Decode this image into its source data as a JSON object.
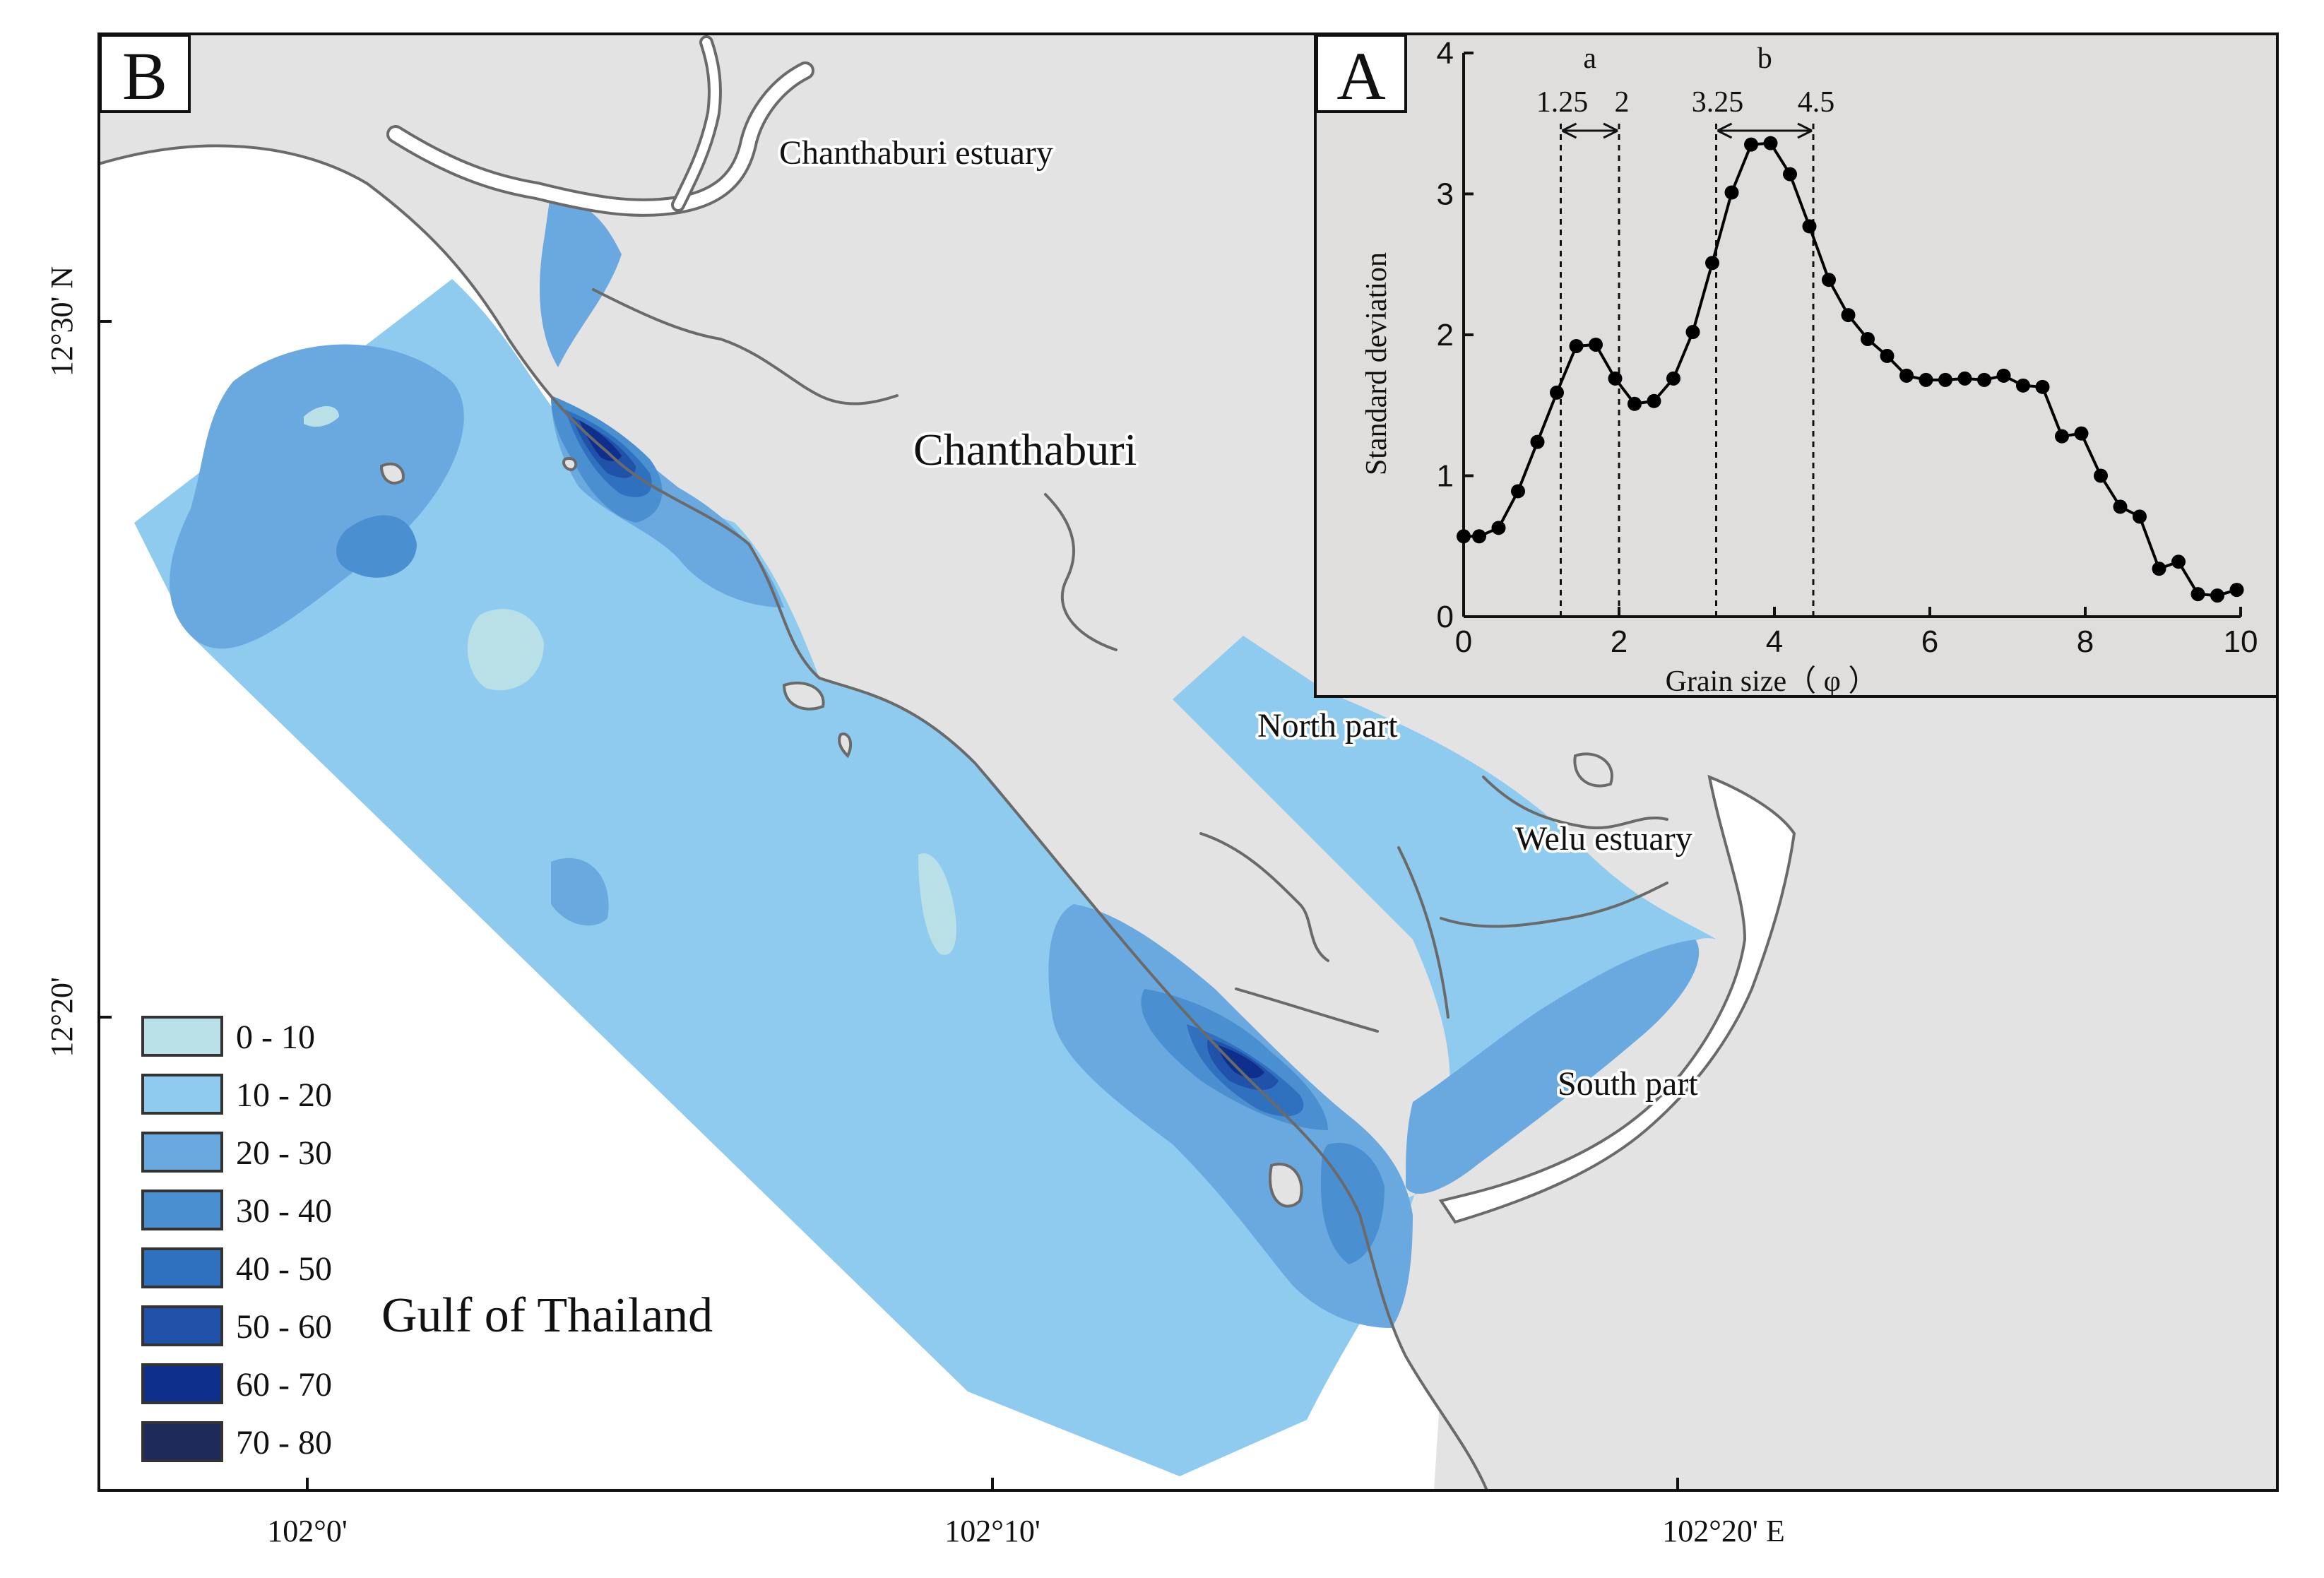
{
  "map": {
    "panel_letter": "B",
    "labels": {
      "chanthaburi_estuary": "Chanthaburi estuary",
      "chanthaburi": "Chanthaburi",
      "north_part": "North part",
      "welu_estuary": "Welu estuary",
      "south_part": "South part",
      "gulf": "Gulf of Thailand"
    },
    "lon_ticks": [
      "102°0'",
      "102°10'",
      "102°20' E"
    ],
    "lat_ticks": [
      "12°30' N",
      "12°20'"
    ],
    "legend": [
      {
        "label": "0 - 10",
        "color": "#b9e0e6"
      },
      {
        "label": "10 - 20",
        "color": "#8ecbee"
      },
      {
        "label": "20 - 30",
        "color": "#6aa9df"
      },
      {
        "label": "30 - 40",
        "color": "#4a8fd0"
      },
      {
        "label": "40 - 50",
        "color": "#2f71bf"
      },
      {
        "label": "50 - 60",
        "color": "#1f52a8"
      },
      {
        "label": "60 - 70",
        "color": "#0f2f8c"
      },
      {
        "label": "70 - 80",
        "color": "#1e2b5a"
      }
    ],
    "land_color": "#e3e3e3",
    "coast_color": "#6a6a6a"
  },
  "inset": {
    "panel_letter": "A",
    "chart_data": {
      "type": "line",
      "xlabel": "Grain size（ φ ）",
      "ylabel": "Standard deviation",
      "xlim": [
        0,
        10
      ],
      "ylim": [
        0,
        4
      ],
      "x_ticks": [
        0,
        2,
        4,
        6,
        8,
        10
      ],
      "y_ticks": [
        0,
        1,
        2,
        3,
        4
      ],
      "grid": false,
      "x": [
        0,
        0.2,
        0.45,
        0.7,
        0.95,
        1.2,
        1.45,
        1.7,
        1.95,
        2.2,
        2.45,
        2.7,
        2.95,
        3.2,
        3.45,
        3.7,
        3.95,
        4.2,
        4.45,
        4.7,
        4.95,
        5.2,
        5.45,
        5.7,
        5.95,
        6.2,
        6.45,
        6.7,
        6.95,
        7.2,
        7.45,
        7.7,
        7.95,
        8.2,
        8.45,
        8.7,
        8.95,
        9.2,
        9.45,
        9.7,
        9.95
      ],
      "y": [
        0.57,
        0.57,
        0.63,
        0.89,
        1.24,
        1.59,
        1.92,
        1.93,
        1.69,
        1.51,
        1.53,
        1.69,
        2.02,
        2.51,
        3.01,
        3.35,
        3.36,
        3.14,
        2.77,
        2.39,
        2.14,
        1.97,
        1.85,
        1.71,
        1.68,
        1.68,
        1.69,
        1.68,
        1.71,
        1.64,
        1.63,
        1.28,
        1.3,
        1.0,
        0.78,
        0.71,
        0.34,
        0.39,
        0.16,
        0.15,
        0.19
      ],
      "color": "#000000"
    },
    "annotations": {
      "range_a": {
        "label": "a",
        "start": 1.25,
        "end": 2,
        "start_label": "1.25",
        "end_label": "2"
      },
      "range_b": {
        "label": "b",
        "start": 3.25,
        "end": 4.5,
        "start_label": "3.25",
        "end_label": "4.5"
      }
    },
    "background": "#e0dedd"
  }
}
